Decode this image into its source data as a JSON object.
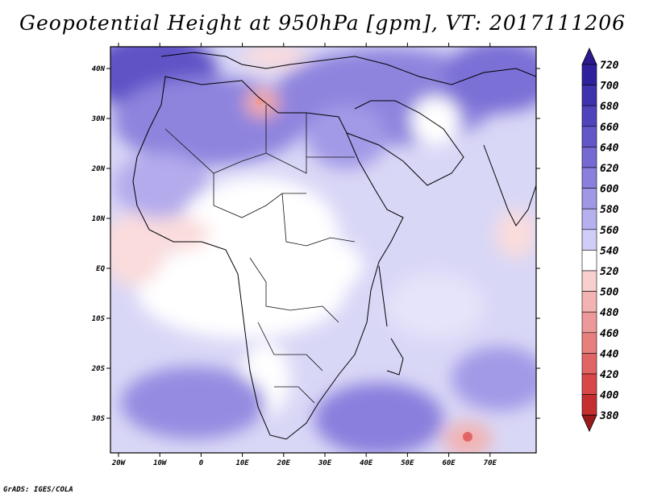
{
  "title": "Geopotential Height at 950hPa [gpm], VT: 2017111206",
  "footer": "GrADS: IGES/COLA",
  "map": {
    "lat_labels": [
      "40N",
      "30N",
      "20N",
      "10N",
      "EQ",
      "10S",
      "20S",
      "30S"
    ],
    "lon_labels": [
      "20W",
      "10W",
      "0",
      "10E",
      "20E",
      "30E",
      "40E",
      "50E",
      "60E",
      "70E"
    ]
  },
  "colorbar": {
    "levels": [
      "720",
      "700",
      "680",
      "660",
      "640",
      "620",
      "600",
      "580",
      "560",
      "540",
      "520",
      "500",
      "480",
      "460",
      "440",
      "420",
      "400",
      "380"
    ],
    "colors": {
      "top_triangle": "#2c1a8e",
      "bottom_triangle": "#9b1b1b",
      "blocks": [
        "#2f219c",
        "#3f32ad",
        "#5044bc",
        "#6256c8",
        "#7569d3",
        "#8a7fdd",
        "#a097e6",
        "#b7b0ee",
        "#d0cdf6",
        "#ffffff",
        "#f8cfcf",
        "#f3b3b3",
        "#ee9999",
        "#e87f7f",
        "#e26565",
        "#d94848",
        "#c43030"
      ]
    }
  }
}
